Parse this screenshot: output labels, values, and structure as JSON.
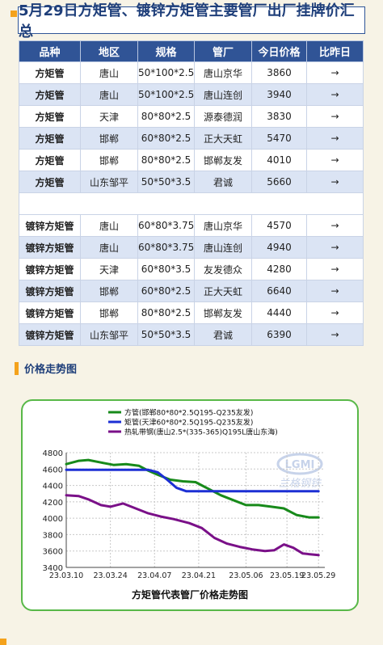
{
  "page": {
    "title": "5月29日方矩管、镀锌方矩管主要管厂出厂挂牌价汇总",
    "section_title": "价格走势图",
    "colors": {
      "accent": "#f4a21c",
      "header_bg": "#305496",
      "row_alt": "#dbe4f4",
      "chart_border": "#58b848"
    }
  },
  "table": {
    "headers": [
      "品种",
      "地区",
      "规格",
      "管厂",
      "今日价格",
      "比昨日"
    ],
    "group1": [
      [
        "方矩管",
        "唐山",
        "50*100*2.5",
        "唐山京华",
        "3860",
        "→"
      ],
      [
        "方矩管",
        "唐山",
        "50*100*2.5",
        "唐山连创",
        "3940",
        "→"
      ],
      [
        "方矩管",
        "天津",
        "80*80*2.5",
        "源泰德润",
        "3830",
        "→"
      ],
      [
        "方矩管",
        "邯郸",
        "60*80*2.5",
        "正大天虹",
        "5470",
        "→"
      ],
      [
        "方矩管",
        "邯郸",
        "80*80*2.5",
        "邯郸友发",
        "4010",
        "→"
      ],
      [
        "方矩管",
        "山东邹平",
        "50*50*3.5",
        "君诚",
        "5660",
        "→"
      ]
    ],
    "group2": [
      [
        "镀锌方矩管",
        "唐山",
        "60*80*3.75",
        "唐山京华",
        "4570",
        "→"
      ],
      [
        "镀锌方矩管",
        "唐山",
        "60*80*3.75",
        "唐山连创",
        "4940",
        "→"
      ],
      [
        "镀锌方矩管",
        "天津",
        "60*80*3.5",
        "友发德众",
        "4280",
        "→"
      ],
      [
        "镀锌方矩管",
        "邯郸",
        "60*80*2.5",
        "正大天虹",
        "6640",
        "→"
      ],
      [
        "镀锌方矩管",
        "邯郸",
        "80*80*2.5",
        "邯郸友发",
        "4440",
        "→"
      ],
      [
        "镀锌方矩管",
        "山东邹平",
        "50*50*3.5",
        "君诚",
        "6390",
        "→"
      ]
    ]
  },
  "chart_data": {
    "type": "line",
    "title": "方矩管代表管厂价格走势图",
    "watermark": {
      "logo": "LGMI",
      "text": "兰格钢铁"
    },
    "xlabel": "",
    "ylabel": "",
    "ylim": [
      3400,
      4800
    ],
    "yticks": [
      3400,
      3600,
      3800,
      4000,
      4200,
      4400,
      4600,
      4800
    ],
    "xlim": [
      "2023-03-10",
      "2023-05-31"
    ],
    "xticks": [
      {
        "date": "2023-03-10",
        "label": "23.03.10"
      },
      {
        "date": "2023-03-24",
        "label": "23.03.24"
      },
      {
        "date": "2023-04-07",
        "label": "23.04.07"
      },
      {
        "date": "2023-04-21",
        "label": "23.04.21"
      },
      {
        "date": "2023-05-06",
        "label": "23.05.06"
      },
      {
        "date": "2023-05-19",
        "label": "23.05.19"
      },
      {
        "date": "2023-05-29",
        "label": "23.05.29"
      }
    ],
    "legend_position": "top",
    "grid": true,
    "series": [
      {
        "name": "方管(邯郸80*80*2.5Q195-Q235友发)",
        "color": "#178a1a",
        "points": [
          [
            "2023-03-10",
            4660
          ],
          [
            "2023-03-14",
            4700
          ],
          [
            "2023-03-17",
            4710
          ],
          [
            "2023-03-21",
            4680
          ],
          [
            "2023-03-25",
            4650
          ],
          [
            "2023-03-29",
            4660
          ],
          [
            "2023-04-02",
            4640
          ],
          [
            "2023-04-05",
            4580
          ],
          [
            "2023-04-08",
            4530
          ],
          [
            "2023-04-12",
            4470
          ],
          [
            "2023-04-16",
            4450
          ],
          [
            "2023-04-20",
            4440
          ],
          [
            "2023-04-24",
            4360
          ],
          [
            "2023-04-28",
            4280
          ],
          [
            "2023-05-02",
            4220
          ],
          [
            "2023-05-06",
            4160
          ],
          [
            "2023-05-10",
            4160
          ],
          [
            "2023-05-14",
            4140
          ],
          [
            "2023-05-18",
            4120
          ],
          [
            "2023-05-22",
            4040
          ],
          [
            "2023-05-26",
            4010
          ],
          [
            "2023-05-29",
            4010
          ]
        ]
      },
      {
        "name": "矩管(天津60*80*2.5Q195-Q235友发)",
        "color": "#1c2fd4",
        "points": [
          [
            "2023-03-10",
            4590
          ],
          [
            "2023-03-25",
            4590
          ],
          [
            "2023-04-05",
            4590
          ],
          [
            "2023-04-08",
            4560
          ],
          [
            "2023-04-11",
            4470
          ],
          [
            "2023-04-14",
            4370
          ],
          [
            "2023-04-17",
            4330
          ],
          [
            "2023-04-21",
            4330
          ],
          [
            "2023-05-06",
            4330
          ],
          [
            "2023-05-19",
            4330
          ],
          [
            "2023-05-29",
            4330
          ]
        ]
      },
      {
        "name": "热轧带钢(唐山2.5*(335-365)Q195L唐山东海)",
        "color": "#7a1088",
        "points": [
          [
            "2023-03-10",
            4280
          ],
          [
            "2023-03-14",
            4270
          ],
          [
            "2023-03-17",
            4230
          ],
          [
            "2023-03-21",
            4160
          ],
          [
            "2023-03-24",
            4140
          ],
          [
            "2023-03-28",
            4180
          ],
          [
            "2023-04-01",
            4120
          ],
          [
            "2023-04-05",
            4060
          ],
          [
            "2023-04-09",
            4020
          ],
          [
            "2023-04-13",
            3990
          ],
          [
            "2023-04-18",
            3940
          ],
          [
            "2023-04-22",
            3880
          ],
          [
            "2023-04-26",
            3760
          ],
          [
            "2023-04-30",
            3690
          ],
          [
            "2023-05-04",
            3650
          ],
          [
            "2023-05-08",
            3620
          ],
          [
            "2023-05-12",
            3600
          ],
          [
            "2023-05-15",
            3610
          ],
          [
            "2023-05-18",
            3680
          ],
          [
            "2023-05-21",
            3640
          ],
          [
            "2023-05-24",
            3570
          ],
          [
            "2023-05-29",
            3550
          ]
        ]
      }
    ]
  }
}
